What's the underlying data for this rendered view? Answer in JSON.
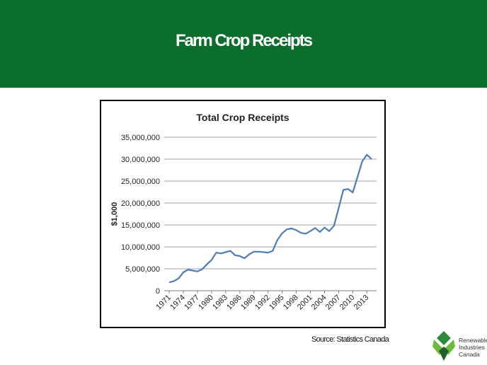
{
  "slide": {
    "title": "Farm Crop Receipts",
    "source": "Source: Statistics Canada"
  },
  "logo": {
    "lines": [
      "Renewable",
      "Industries",
      "Canada"
    ],
    "icon": "green-leaf-mark-icon",
    "colors": [
      "#2e8b3a",
      "#6cbb3c",
      "#1d5e2a"
    ]
  },
  "colors": {
    "banner": "#0b6e2c",
    "line": "#4a7ebb",
    "grid": "#a6a6a6"
  },
  "chart_data": {
    "type": "line",
    "title": "Total Crop Receipts",
    "xlabel": "",
    "ylabel": "$1,000",
    "ylim": [
      0,
      35000000
    ],
    "yticks": [
      0,
      5000000,
      10000000,
      15000000,
      20000000,
      25000000,
      30000000,
      35000000
    ],
    "ytick_labels": [
      "0",
      "5,000,000",
      "10,000,000",
      "15,000,000",
      "20,000,000",
      "25,000,000",
      "30,000,000",
      "35,000,000"
    ],
    "xtick_labels": [
      "1971",
      "1974",
      "1977",
      "1980",
      "1983",
      "1986",
      "1989",
      "1992",
      "1995",
      "1998",
      "2001",
      "2004",
      "2007",
      "2010",
      "2013"
    ],
    "grid": true,
    "legend": "none",
    "x": [
      1971,
      1972,
      1973,
      1974,
      1975,
      1976,
      1977,
      1978,
      1979,
      1980,
      1981,
      1982,
      1983,
      1984,
      1985,
      1986,
      1987,
      1988,
      1989,
      1990,
      1991,
      1992,
      1993,
      1994,
      1995,
      1996,
      1997,
      1998,
      1999,
      2000,
      2001,
      2002,
      2003,
      2004,
      2005,
      2006,
      2007,
      2008,
      2009,
      2010,
      2011,
      2012,
      2013,
      2014
    ],
    "series": [
      {
        "values": [
          1900000,
          2200000,
          2800000,
          4200000,
          4800000,
          4600000,
          4400000,
          4900000,
          6000000,
          7000000,
          8700000,
          8500000,
          8800000,
          9100000,
          8100000,
          7900000,
          7400000,
          8300000,
          8900000,
          8900000,
          8800000,
          8700000,
          9100000,
          11600000,
          13100000,
          14000000,
          14200000,
          13800000,
          13200000,
          13000000,
          13600000,
          14300000,
          13400000,
          14400000,
          13600000,
          14800000,
          18800000,
          23000000,
          23200000,
          22400000,
          25900000,
          29500000,
          31000000,
          30000000
        ]
      }
    ]
  }
}
